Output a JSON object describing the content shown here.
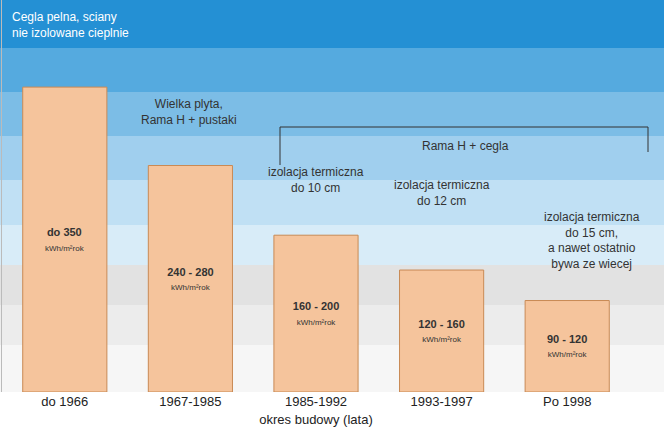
{
  "chart_data": {
    "type": "bar",
    "categories": [
      "do 1966",
      "1967-1985",
      "1985-1992",
      "1993-1997",
      "Po 1998"
    ],
    "values": [
      350,
      260,
      180,
      140,
      105
    ],
    "value_labels": [
      "do 350",
      "240 - 280",
      "160 - 200",
      "120 - 160",
      "90 - 120"
    ],
    "unit": "kWh/m²rok",
    "x_label": "okres budowy (lata)",
    "annotations": [
      "Cegla pelna, sciany\nnie izolowane cieplnie",
      "Wielka plyta,\nRama H + pustaki",
      "Rama H + cegla",
      "izolacja termiczna\ndo 10 cm",
      "izolacja termiczna\ndo 12 cm",
      "izolacja termiczna\ndo 15 cm,\na nawet ostatnio\nbywa ze wiecej"
    ],
    "color": "#f5c49c",
    "ylim": [
      0,
      450
    ],
    "tick_labels": "x",
    "data_labels": true,
    "grid": false
  }
}
